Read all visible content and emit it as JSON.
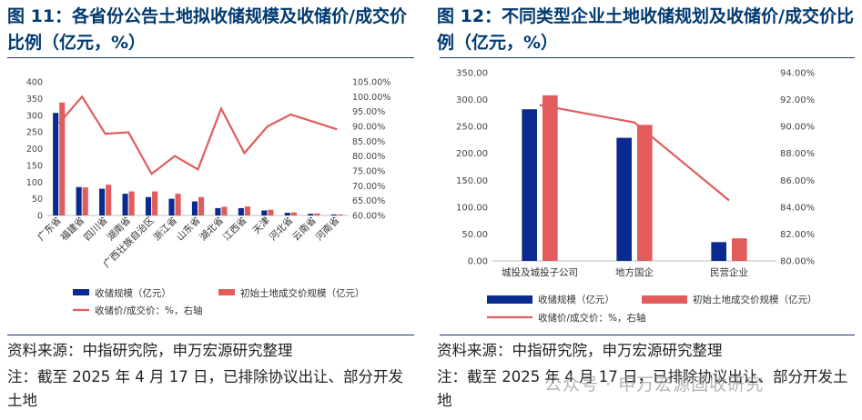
{
  "colors": {
    "bar_primary": "#0b2a8f",
    "bar_secondary": "#e25c5c",
    "line": "#e25c5c",
    "title": "#003a70"
  },
  "left": {
    "title": "图 11：各省份公告土地拟收储规模及收储价/成交价比例（亿元，%）",
    "source": "资料来源：中指研究院，申万宏源研究整理",
    "note": "注：截至 2025 年 4 月 17 日，已排除协议出让、部分开发土地"
  },
  "right": {
    "title": "图 12：不同类型企业土地收储规划及收储价/成交价比例（亿元，%）",
    "source": "资料来源：中指研究院，申万宏源研究整理",
    "note": "注：截至 2025 年 4 月 17 日，已排除协议出让、部分开发土地"
  },
  "watermark": "公众号 · 申万宏源固收研究",
  "chart_data": [
    {
      "type": "bar",
      "categories": [
        "广东省",
        "福建省",
        "四川省",
        "湖南省",
        "广西壮族自治区",
        "浙江省",
        "山东省",
        "湖北省",
        "江西省",
        "天津",
        "河北省",
        "云南省",
        "河南省"
      ],
      "series": [
        {
          "name": "收储规模（亿元）",
          "type": "bar",
          "axis": "left",
          "color": "#0b2a8f",
          "values": [
            307,
            85,
            80,
            65,
            55,
            50,
            42,
            22,
            22,
            15,
            8,
            5,
            3
          ]
        },
        {
          "name": "初始土地成交价规模（亿元）",
          "type": "bar",
          "axis": "left",
          "color": "#e25c5c",
          "values": [
            338,
            84,
            92,
            72,
            72,
            65,
            55,
            26,
            27,
            17,
            9,
            6,
            3
          ]
        },
        {
          "name": "收储价/成交价：%，右轴",
          "type": "line",
          "axis": "right",
          "color": "#e25c5c",
          "values": [
            91,
            100,
            87.5,
            88,
            74,
            80,
            75.5,
            96,
            81,
            90,
            94,
            91.5,
            89
          ]
        }
      ],
      "ylim": [
        0,
        400
      ],
      "yticks": [
        "0",
        "50",
        "100",
        "150",
        "200",
        "250",
        "300",
        "350",
        "400"
      ],
      "y2lim": [
        60,
        105
      ],
      "y2ticks": [
        "60.00%",
        "65.00%",
        "70.00%",
        "75.00%",
        "80.00%",
        "85.00%",
        "90.00%",
        "95.00%",
        "100.00%",
        "105.00%"
      ],
      "legend_position": "bottom"
    },
    {
      "type": "bar",
      "categories": [
        "城投及城投子公司",
        "地方国企",
        "民营企业"
      ],
      "series": [
        {
          "name": "收储规模（亿元）",
          "type": "bar",
          "axis": "left",
          "color": "#0b2a8f",
          "values": [
            282,
            229,
            35
          ]
        },
        {
          "name": "初始土地成交价规模（亿元）",
          "type": "bar",
          "axis": "left",
          "color": "#e25c5c",
          "values": [
            308,
            253,
            42
          ]
        },
        {
          "name": "收储价/成交价：%，右轴",
          "type": "line",
          "axis": "right",
          "color": "#e25c5c",
          "values": [
            91.6,
            90.3,
            84.5
          ]
        }
      ],
      "ylim": [
        0,
        350
      ],
      "yticks": [
        "0.00",
        "50.00",
        "100.00",
        "150.00",
        "200.00",
        "250.00",
        "300.00",
        "350.00"
      ],
      "y2lim": [
        80,
        94
      ],
      "y2ticks": [
        "80.00%",
        "82.00%",
        "84.00%",
        "86.00%",
        "88.00%",
        "90.00%",
        "92.00%",
        "94.00%"
      ],
      "legend_position": "bottom"
    }
  ]
}
